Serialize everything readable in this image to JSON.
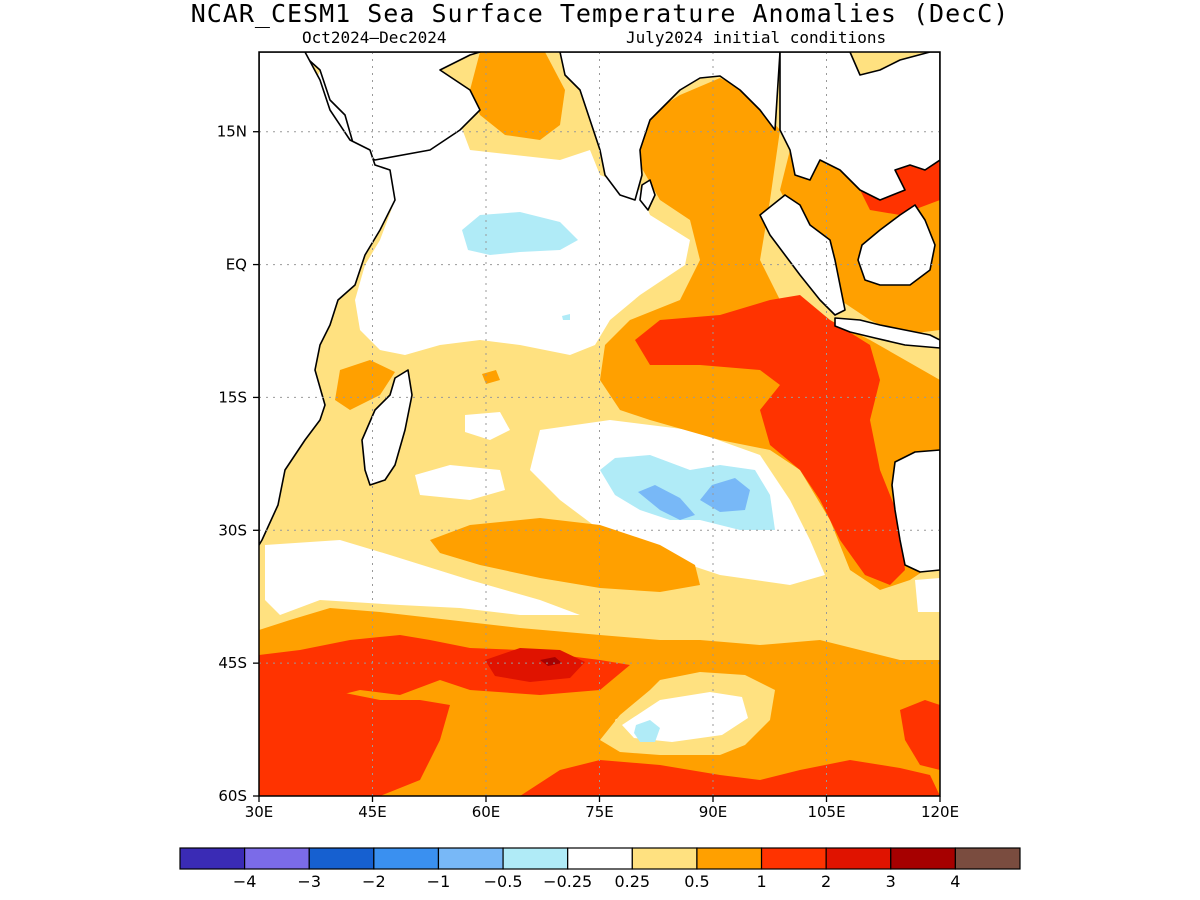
{
  "title": "NCAR_CESM1 Sea Surface Temperature Anomalies (DecC)",
  "subtitle_left": "Oct2024–Dec2024",
  "subtitle_right": "July2024 initial conditions",
  "map": {
    "lon_range": [
      30,
      120
    ],
    "lat_range": [
      -60,
      24
    ],
    "lat_ticks": [
      {
        "value": 15,
        "label": "15N"
      },
      {
        "value": 0,
        "label": "EQ"
      },
      {
        "value": -15,
        "label": "15S"
      },
      {
        "value": -30,
        "label": "30S"
      },
      {
        "value": -45,
        "label": "45S"
      },
      {
        "value": -60,
        "label": "60S"
      }
    ],
    "lon_ticks": [
      {
        "value": 30,
        "label": "30E"
      },
      {
        "value": 45,
        "label": "45E"
      },
      {
        "value": 60,
        "label": "60E"
      },
      {
        "value": 75,
        "label": "75E"
      },
      {
        "value": 90,
        "label": "90E"
      },
      {
        "value": 105,
        "label": "105E"
      },
      {
        "value": 120,
        "label": "120E"
      }
    ],
    "grid": "dotted",
    "variable": "Sea Surface Temperature Anomalies",
    "units": "DecC"
  },
  "colorbar": {
    "colors": [
      "#3a2bb5",
      "#7b6be8",
      "#1660d0",
      "#3a90f0",
      "#78b8f7",
      "#b0ebf7",
      "#ffffff",
      "#ffe180",
      "#ffa000",
      "#ff3300",
      "#e01300",
      "#a60000",
      "#7a4c3f"
    ],
    "labels": [
      "−4",
      "−3",
      "−2",
      "−1",
      "−0.5",
      "−0.25",
      "0.25",
      "0.5",
      "1",
      "2",
      "3",
      "4"
    ]
  },
  "legend_colors": {
    "neg025": "#b0ebf7",
    "neg05": "#78b8f7",
    "pos025": "#ffe180",
    "pos05": "#ffa000",
    "pos1": "#ff3300",
    "pos2": "#e01300",
    "pos3": "#a60000"
  }
}
